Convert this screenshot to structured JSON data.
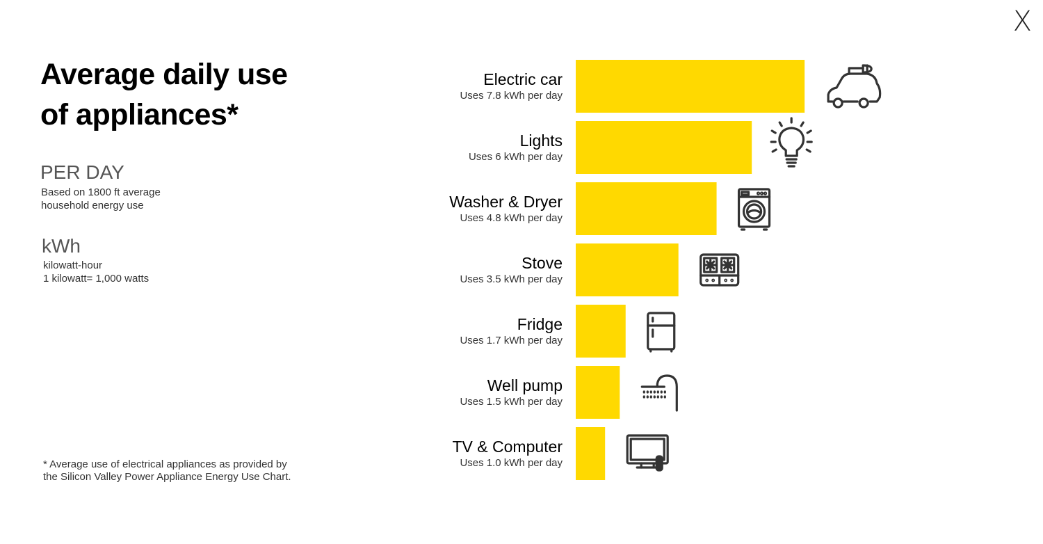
{
  "close_label": "X",
  "title": {
    "line1": "Average daily use",
    "line2": "of appliances*"
  },
  "per_day": {
    "heading": "PER DAY",
    "line1": "Based on 1800 ft average",
    "line2": "household energy use"
  },
  "kwh": {
    "heading": "kWh",
    "line1": "kilowatt-hour",
    "line2": "1 kilowatt= 1,000 watts"
  },
  "footnote": {
    "line1": "* Average use of electrical appliances as provided by",
    "line2": "the Silicon Valley Power Appliance Energy Use Chart."
  },
  "bar_color": "#FFD900",
  "chart_data": {
    "type": "bar",
    "orientation": "horizontal",
    "categories": [
      "Electric car",
      "Lights",
      "Washer & Dryer",
      "Stove",
      "Fridge",
      "Well pump",
      "TV & Computer"
    ],
    "values": [
      7.8,
      6,
      4.8,
      3.5,
      1.7,
      1.5,
      1.0
    ],
    "sublabels": [
      "Uses 7.8 kWh per day",
      "Uses 6 kWh per day",
      "Uses 4.8 kWh per day",
      "Uses 3.5 kWh per day",
      "Uses 1.7 kWh per day",
      "Uses 1.5 kWh per day",
      "Uses 1.0 kWh per day"
    ],
    "icons": [
      "electric-car-icon",
      "lightbulb-icon",
      "washing-machine-icon",
      "stove-icon",
      "fridge-icon",
      "shower-icon",
      "tv-icon"
    ],
    "unit": "kWh",
    "grid": false,
    "legend": "none"
  }
}
